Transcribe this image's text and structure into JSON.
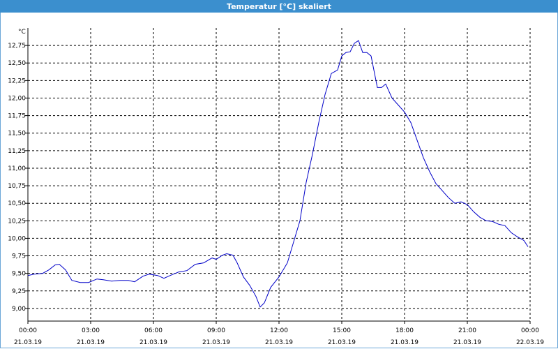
{
  "window": {
    "title": "Temperatur [°C] skaliert"
  },
  "chart_data": {
    "type": "line",
    "title": "Temperatur [°C] skaliert",
    "ylabel": "°C",
    "xlabel": "",
    "ylim": [
      8.82,
      13.0
    ],
    "xlim": [
      0,
      24
    ],
    "grid": true,
    "line_color": "#0000c8",
    "yticks": [
      {
        "value": 9.0,
        "label": "9,00"
      },
      {
        "value": 9.25,
        "label": "9,25"
      },
      {
        "value": 9.5,
        "label": "9,50"
      },
      {
        "value": 9.75,
        "label": "9,75"
      },
      {
        "value": 10.0,
        "label": "10,00"
      },
      {
        "value": 10.25,
        "label": "10,25"
      },
      {
        "value": 10.5,
        "label": "10,50"
      },
      {
        "value": 10.75,
        "label": "10,75"
      },
      {
        "value": 11.0,
        "label": "11,00"
      },
      {
        "value": 11.25,
        "label": "11,25"
      },
      {
        "value": 11.5,
        "label": "11,50"
      },
      {
        "value": 11.75,
        "label": "11,75"
      },
      {
        "value": 12.0,
        "label": "12,00"
      },
      {
        "value": 12.25,
        "label": "12,25"
      },
      {
        "value": 12.5,
        "label": "12,50"
      },
      {
        "value": 12.75,
        "label": "12,75"
      }
    ],
    "xticks": [
      {
        "hour": 0,
        "time": "00:00",
        "date": "21.03.19"
      },
      {
        "hour": 3,
        "time": "03:00",
        "date": "21.03.19"
      },
      {
        "hour": 6,
        "time": "06:00",
        "date": "21.03.19"
      },
      {
        "hour": 9,
        "time": "09:00",
        "date": "21.03.19"
      },
      {
        "hour": 12,
        "time": "12:00",
        "date": "21.03.19"
      },
      {
        "hour": 15,
        "time": "15:00",
        "date": "21.03.19"
      },
      {
        "hour": 18,
        "time": "18:00",
        "date": "21.03.19"
      },
      {
        "hour": 21,
        "time": "21:00",
        "date": "21.03.19"
      },
      {
        "hour": 24,
        "time": "00:00",
        "date": "22.03.19"
      }
    ],
    "series": [
      {
        "x": [
          0.0,
          0.3,
          0.7,
          1.0,
          1.3,
          1.5,
          1.8,
          2.1,
          2.5,
          2.9,
          3.3,
          3.6,
          4.0,
          4.4,
          4.8,
          5.1,
          5.5,
          5.8,
          6.2,
          6.5,
          6.8,
          7.2,
          7.6,
          8.0,
          8.4,
          8.8,
          9.0,
          9.3,
          9.5,
          9.8,
          10.0,
          10.3,
          10.6,
          10.9,
          11.1,
          11.3,
          11.6,
          12.0,
          12.4,
          12.8,
          13.0,
          13.3,
          13.6,
          13.9,
          14.2,
          14.5,
          14.8,
          15.0,
          15.2,
          15.4,
          15.6,
          15.8,
          16.0,
          16.2,
          16.4,
          16.7,
          16.9,
          17.1,
          17.4,
          17.7,
          18.0,
          18.3,
          18.6,
          18.9,
          19.2,
          19.5,
          19.8,
          20.1,
          20.4,
          20.7,
          21.0,
          21.3,
          21.6,
          21.9,
          22.2,
          22.5,
          22.8,
          23.1,
          23.4,
          23.7,
          23.9
        ],
        "y": [
          9.47,
          9.49,
          9.5,
          9.55,
          9.62,
          9.63,
          9.55,
          9.4,
          9.37,
          9.37,
          9.42,
          9.41,
          9.39,
          9.4,
          9.4,
          9.38,
          9.46,
          9.49,
          9.47,
          9.43,
          9.47,
          9.52,
          9.54,
          9.63,
          9.65,
          9.72,
          9.7,
          9.76,
          9.78,
          9.76,
          9.65,
          9.45,
          9.33,
          9.17,
          9.02,
          9.08,
          9.3,
          9.45,
          9.65,
          10.05,
          10.25,
          10.8,
          11.2,
          11.65,
          12.05,
          12.35,
          12.4,
          12.6,
          12.65,
          12.66,
          12.78,
          12.82,
          12.65,
          12.65,
          12.6,
          12.15,
          12.15,
          12.2,
          12.0,
          11.9,
          11.8,
          11.65,
          11.4,
          11.15,
          10.95,
          10.78,
          10.68,
          10.58,
          10.5,
          10.52,
          10.48,
          10.38,
          10.3,
          10.25,
          10.24,
          10.2,
          10.18,
          10.08,
          10.02,
          9.97,
          9.88
        ]
      }
    ]
  }
}
